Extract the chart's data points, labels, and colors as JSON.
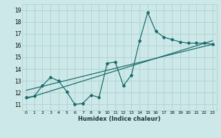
{
  "title": "",
  "xlabel": "Humidex (Indice chaleur)",
  "bg_color": "#cce8e8",
  "grid_color": "#aacccc",
  "line_color": "#1a6b6b",
  "xlim": [
    -0.5,
    23.5
  ],
  "ylim": [
    10.5,
    19.5
  ],
  "xticks": [
    0,
    1,
    2,
    3,
    4,
    5,
    6,
    7,
    8,
    9,
    10,
    11,
    12,
    13,
    14,
    15,
    16,
    17,
    18,
    19,
    20,
    21,
    22,
    23
  ],
  "yticks": [
    11,
    12,
    13,
    14,
    15,
    16,
    17,
    18,
    19
  ],
  "series1_x": [
    0,
    1,
    2,
    3,
    4,
    5,
    6,
    7,
    8,
    9,
    10,
    11,
    12,
    13,
    14,
    15,
    16,
    17,
    18,
    19,
    20,
    21,
    22,
    23
  ],
  "series1_y": [
    11.6,
    11.7,
    12.6,
    13.3,
    13.0,
    12.1,
    11.0,
    11.1,
    11.8,
    11.6,
    14.5,
    14.6,
    12.6,
    13.5,
    16.4,
    18.8,
    17.2,
    16.7,
    16.5,
    16.3,
    16.2,
    16.2,
    16.2,
    16.1
  ],
  "trend1_x": [
    0,
    23
  ],
  "trend1_y": [
    11.5,
    16.4
  ],
  "trend2_x": [
    0,
    23
  ],
  "trend2_y": [
    12.2,
    16.1
  ]
}
